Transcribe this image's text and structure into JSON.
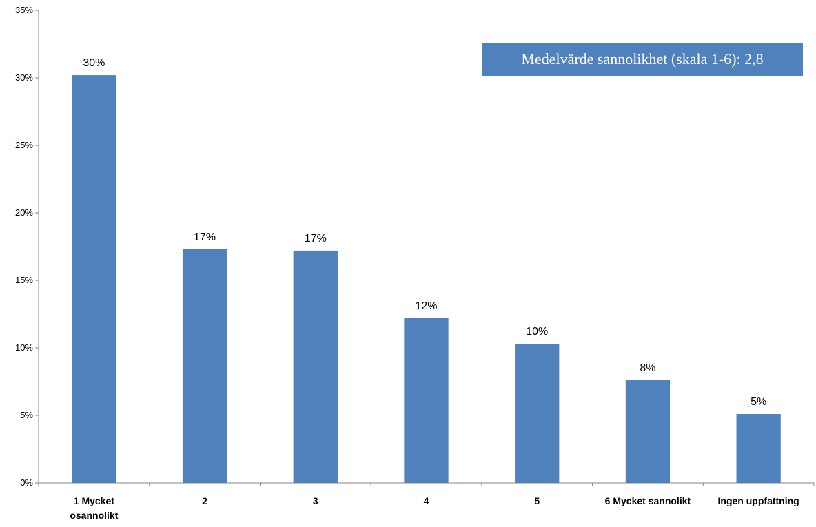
{
  "chart_data": {
    "type": "bar",
    "categories": [
      [
        "1 Mycket",
        "osannolikt"
      ],
      [
        "2"
      ],
      [
        "3"
      ],
      [
        "4"
      ],
      [
        "5"
      ],
      [
        "6 Mycket sannolikt"
      ],
      [
        "Ingen uppfattning"
      ]
    ],
    "values": [
      30.2,
      17.3,
      17.2,
      12.2,
      10.3,
      7.6,
      5.1
    ],
    "data_labels": [
      "30%",
      "17%",
      "17%",
      "12%",
      "10%",
      "8%",
      "5%"
    ],
    "ylim": [
      0,
      35
    ],
    "yticks": [
      0,
      5,
      10,
      15,
      20,
      25,
      30,
      35
    ],
    "ytick_labels": [
      "0%",
      "5%",
      "10%",
      "15%",
      "20%",
      "25%",
      "30%",
      "35%"
    ],
    "bar_color": "#4f81bd",
    "grid": false,
    "annotation": "Medelvärde sannolikhet (skala 1-6): 2,8"
  }
}
